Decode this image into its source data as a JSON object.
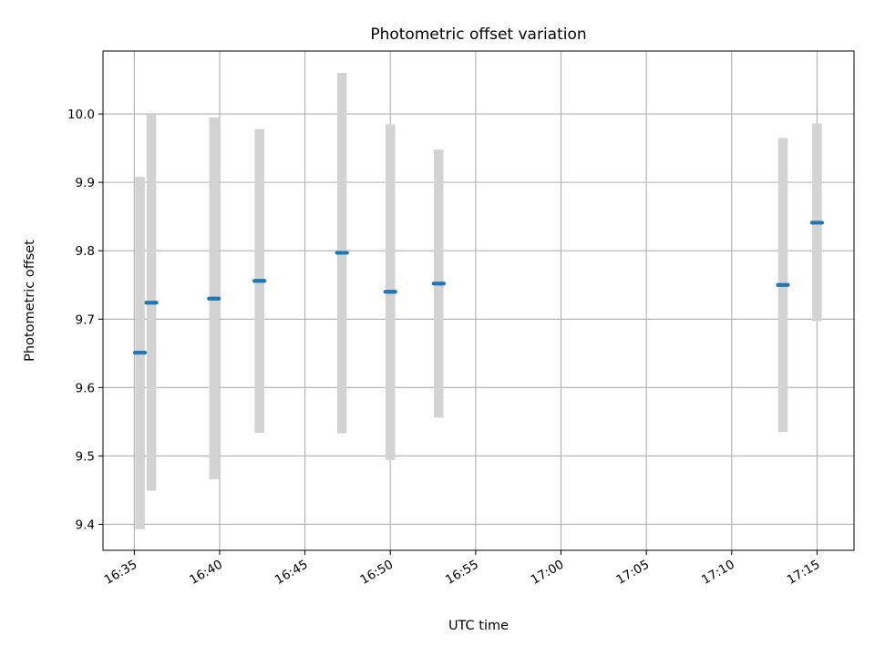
{
  "chart_data": {
    "type": "scatter",
    "title": "Photometric offset variation",
    "xlabel": "UTC time",
    "ylabel": "Photometric offset",
    "x_ticks": [
      "16:35",
      "16:40",
      "16:45",
      "16:50",
      "16:55",
      "17:00",
      "17:05",
      "17:10",
      "17:15"
    ],
    "y_ticks": [
      "9.4",
      "9.5",
      "9.6",
      "9.7",
      "9.8",
      "9.9",
      "10.0"
    ],
    "xlim": [
      "16:33:10",
      "17:17:10"
    ],
    "ylim": [
      9.362,
      10.092
    ],
    "grid": true,
    "colors": {
      "point": "#1f77b4",
      "errorbar": "#d3d3d3",
      "grid": "#b0b0b0"
    },
    "points": [
      {
        "x": "16:35:20",
        "y": 9.651,
        "y_low": 9.393,
        "y_high": 9.908
      },
      {
        "x": "16:36:00",
        "y": 9.724,
        "y_low": 9.449,
        "y_high": 10.0
      },
      {
        "x": "16:39:40",
        "y": 9.73,
        "y_low": 9.466,
        "y_high": 9.995
      },
      {
        "x": "16:42:20",
        "y": 9.756,
        "y_low": 9.534,
        "y_high": 9.978
      },
      {
        "x": "16:47:10",
        "y": 9.797,
        "y_low": 9.533,
        "y_high": 10.06
      },
      {
        "x": "16:50:00",
        "y": 9.74,
        "y_low": 9.494,
        "y_high": 9.985
      },
      {
        "x": "16:52:50",
        "y": 9.752,
        "y_low": 9.556,
        "y_high": 9.948
      },
      {
        "x": "17:13:00",
        "y": 9.75,
        "y_low": 9.535,
        "y_high": 9.965
      },
      {
        "x": "17:15:00",
        "y": 9.841,
        "y_low": 9.697,
        "y_high": 9.986
      }
    ]
  }
}
